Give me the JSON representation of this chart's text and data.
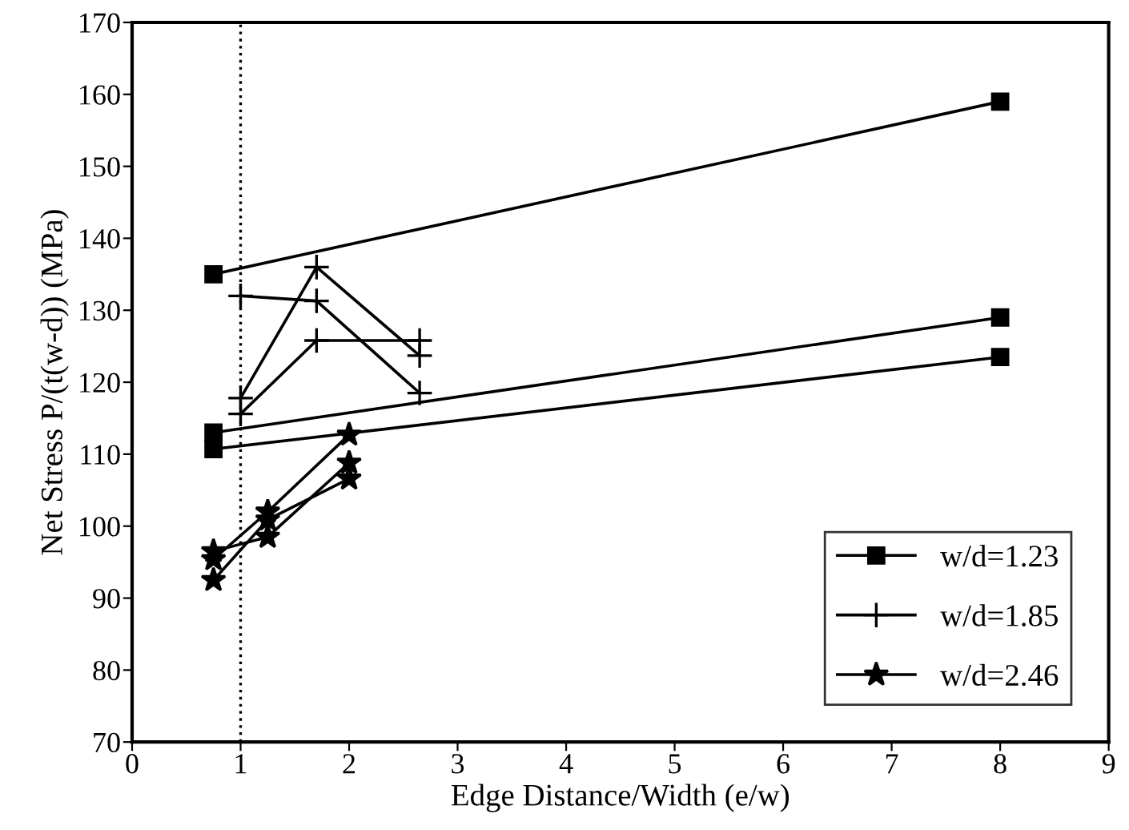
{
  "chart_data": {
    "type": "line",
    "xlabel": "Edge Distance/Width (e/w)",
    "ylabel": "Net Stress P/(t(w-d)) (MPa)",
    "xlim": [
      0,
      9
    ],
    "ylim": [
      70,
      170
    ],
    "xticks": [
      0,
      1,
      2,
      3,
      4,
      5,
      6,
      7,
      8,
      9
    ],
    "yticks": [
      70,
      80,
      90,
      100,
      110,
      120,
      130,
      140,
      150,
      160,
      170
    ],
    "grid": false,
    "legend": "bottom right",
    "line_style": "solid",
    "ref_lines": [
      {
        "axis": "x",
        "value": 1,
        "label": null,
        "color": "#000000",
        "line_style": "dotted"
      }
    ],
    "series": [
      {
        "name": "w/d=1.23",
        "color": "#000000",
        "marker": "square",
        "x": [
          0.75,
          8
        ],
        "values": [
          135,
          159
        ]
      },
      {
        "color": "#000000",
        "marker": "square",
        "x": [
          0.75,
          8
        ],
        "values": [
          113,
          129
        ]
      },
      {
        "color": "#000000",
        "marker": "square",
        "x": [
          0.75,
          8
        ],
        "values": [
          110.7,
          123.5
        ]
      },
      {
        "name": "w/d=1.85",
        "color": "#000000",
        "marker": "cross",
        "x": [
          1,
          1.7,
          2.65
        ],
        "values": [
          132,
          131.3,
          118.5
        ]
      },
      {
        "color": "#000000",
        "marker": "cross",
        "x": [
          1,
          1.7,
          2.65
        ],
        "values": [
          117.8,
          136,
          123.7
        ]
      },
      {
        "color": "#000000",
        "marker": "cross",
        "x": [
          1,
          1.7,
          2.65
        ],
        "values": [
          115.6,
          125.8,
          125.8
        ]
      },
      {
        "name": "w/d=2.46",
        "color": "#000000",
        "marker": "star",
        "x": [
          0.75,
          1.25,
          2
        ],
        "values": [
          96.5,
          98.5,
          108.8
        ]
      },
      {
        "color": "#000000",
        "marker": "star",
        "x": [
          0.75,
          1.25,
          2
        ],
        "values": [
          95.4,
          102,
          112.7
        ]
      },
      {
        "color": "#000000",
        "marker": "star",
        "x": [
          0.75,
          1.25,
          2
        ],
        "values": [
          92.5,
          100.9,
          106.6
        ]
      }
    ]
  }
}
